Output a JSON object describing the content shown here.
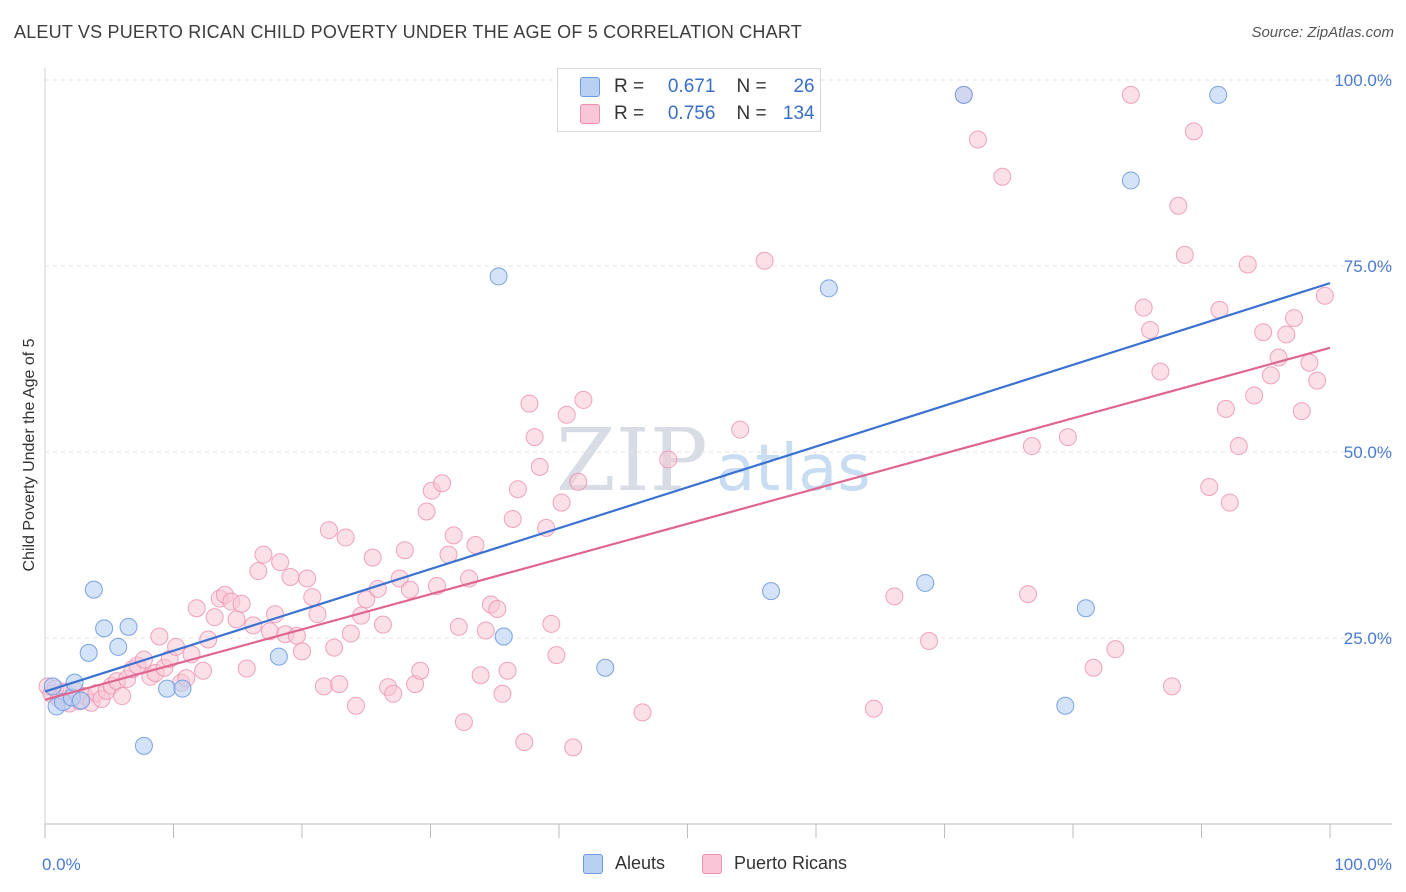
{
  "title": "ALEUT VS PUERTO RICAN CHILD POVERTY UNDER THE AGE OF 5 CORRELATION CHART",
  "source": "Source: ZipAtlas.com",
  "watermark": {
    "zip": "ZIP",
    "atlas": "atlas"
  },
  "legend": {
    "r_label": "R =",
    "n_label": "N =",
    "rows": [
      {
        "r": "0.671",
        "n": "26"
      },
      {
        "r": "0.756",
        "n": "134"
      }
    ]
  },
  "chart_data": {
    "type": "scatter",
    "title": "ALEUT VS PUERTO RICAN CHILD POVERTY UNDER THE AGE OF 5 CORRELATION CHART",
    "xlabel": "",
    "ylabel": "Child Poverty Under the Age of 5",
    "xlim": [
      0,
      100
    ],
    "ylim": [
      0,
      103
    ],
    "x_tick_labels": [
      "0.0%",
      "100.0%"
    ],
    "y_ticks": [
      25,
      50,
      75,
      100
    ],
    "y_tick_labels": [
      "25.0%",
      "50.0%",
      "75.0%",
      "100.0%"
    ],
    "grid": true,
    "legend_position": "top-center",
    "series": [
      {
        "name": "Aleuts",
        "color": "#6d9be0",
        "fill": "#b8d1f3",
        "trend": {
          "x": [
            0,
            100
          ],
          "y": [
            17.8,
            72.7
          ],
          "color": "#3a72d2"
        },
        "points": [
          [
            0.6,
            18.5
          ],
          [
            0.9,
            15.8
          ],
          [
            1.4,
            16.4
          ],
          [
            2.1,
            17.0
          ],
          [
            2.3,
            19.0
          ],
          [
            2.8,
            16.6
          ],
          [
            3.4,
            23.0
          ],
          [
            3.8,
            31.5
          ],
          [
            4.6,
            26.3
          ],
          [
            5.7,
            23.8
          ],
          [
            6.5,
            26.5
          ],
          [
            7.7,
            10.5
          ],
          [
            9.5,
            18.2
          ],
          [
            10.7,
            18.2
          ],
          [
            18.2,
            22.5
          ],
          [
            35.3,
            73.6
          ],
          [
            35.7,
            25.2
          ],
          [
            43.6,
            21.0
          ],
          [
            56.5,
            31.3
          ],
          [
            61.0,
            72.0
          ],
          [
            68.5,
            32.4
          ],
          [
            71.5,
            98.0
          ],
          [
            79.4,
            15.9
          ],
          [
            81.0,
            29.0
          ],
          [
            84.5,
            86.5
          ],
          [
            91.3,
            98.0
          ]
        ]
      },
      {
        "name": "Puerto Ricans",
        "color": "#ec8fae",
        "fill": "#f8c6d6",
        "trend": {
          "x": [
            0,
            100
          ],
          "y": [
            16.7,
            64.0
          ],
          "color": "#e0668f"
        },
        "points": [
          [
            0.2,
            18.5
          ],
          [
            0.5,
            17.5
          ],
          [
            0.8,
            18.2
          ],
          [
            1.1,
            16.8
          ],
          [
            1.5,
            17.8
          ],
          [
            1.9,
            16.2
          ],
          [
            2.3,
            18.0
          ],
          [
            2.7,
            16.5
          ],
          [
            3.1,
            17.2
          ],
          [
            3.6,
            16.3
          ],
          [
            4.0,
            17.6
          ],
          [
            4.4,
            16.8
          ],
          [
            4.8,
            17.9
          ],
          [
            5.2,
            18.6
          ],
          [
            5.6,
            19.2
          ],
          [
            6.0,
            17.2
          ],
          [
            6.4,
            19.5
          ],
          [
            6.8,
            20.8
          ],
          [
            7.2,
            21.3
          ],
          [
            7.7,
            22.1
          ],
          [
            8.2,
            19.8
          ],
          [
            8.6,
            20.3
          ],
          [
            8.9,
            25.2
          ],
          [
            9.3,
            21.0
          ],
          [
            9.7,
            22.2
          ],
          [
            10.2,
            23.8
          ],
          [
            10.6,
            19.0
          ],
          [
            11.0,
            19.6
          ],
          [
            11.4,
            22.8
          ],
          [
            11.8,
            29.0
          ],
          [
            12.3,
            20.6
          ],
          [
            12.7,
            24.8
          ],
          [
            13.2,
            27.8
          ],
          [
            13.6,
            30.3
          ],
          [
            14.0,
            30.8
          ],
          [
            14.5,
            29.9
          ],
          [
            14.9,
            27.5
          ],
          [
            15.3,
            29.6
          ],
          [
            15.7,
            20.9
          ],
          [
            16.2,
            26.7
          ],
          [
            16.6,
            34.0
          ],
          [
            17.0,
            36.2
          ],
          [
            17.5,
            25.9
          ],
          [
            17.9,
            28.2
          ],
          [
            18.3,
            35.2
          ],
          [
            18.7,
            25.5
          ],
          [
            19.1,
            33.2
          ],
          [
            19.6,
            25.3
          ],
          [
            20.0,
            23.2
          ],
          [
            20.4,
            33.0
          ],
          [
            20.8,
            30.5
          ],
          [
            21.2,
            28.2
          ],
          [
            21.7,
            18.5
          ],
          [
            22.1,
            39.5
          ],
          [
            22.5,
            23.7
          ],
          [
            22.9,
            18.8
          ],
          [
            23.4,
            38.5
          ],
          [
            23.8,
            25.6
          ],
          [
            24.2,
            15.9
          ],
          [
            24.6,
            28.0
          ],
          [
            25.0,
            30.2
          ],
          [
            25.5,
            35.8
          ],
          [
            25.9,
            31.6
          ],
          [
            26.3,
            26.8
          ],
          [
            26.7,
            18.4
          ],
          [
            27.1,
            17.5
          ],
          [
            27.6,
            33.0
          ],
          [
            28.0,
            36.8
          ],
          [
            28.4,
            31.5
          ],
          [
            28.8,
            18.8
          ],
          [
            29.2,
            20.6
          ],
          [
            29.7,
            42.0
          ],
          [
            30.1,
            44.8
          ],
          [
            30.5,
            32.0
          ],
          [
            30.9,
            45.8
          ],
          [
            31.4,
            36.2
          ],
          [
            31.8,
            38.8
          ],
          [
            32.2,
            26.5
          ],
          [
            32.6,
            13.7
          ],
          [
            33.0,
            33.0
          ],
          [
            33.5,
            37.5
          ],
          [
            33.9,
            20.0
          ],
          [
            34.3,
            26.0
          ],
          [
            34.7,
            29.5
          ],
          [
            35.2,
            28.9
          ],
          [
            35.6,
            17.5
          ],
          [
            36.0,
            20.6
          ],
          [
            36.4,
            41.0
          ],
          [
            36.8,
            45.0
          ],
          [
            37.3,
            11.0
          ],
          [
            37.7,
            56.5
          ],
          [
            38.1,
            52.0
          ],
          [
            38.5,
            48.0
          ],
          [
            39.0,
            39.8
          ],
          [
            39.4,
            26.9
          ],
          [
            39.8,
            22.7
          ],
          [
            40.2,
            43.2
          ],
          [
            40.6,
            55.0
          ],
          [
            41.1,
            10.3
          ],
          [
            41.5,
            46.0
          ],
          [
            41.9,
            57.0
          ],
          [
            46.5,
            15.0
          ],
          [
            48.5,
            49.0
          ],
          [
            54.1,
            53.0
          ],
          [
            56.0,
            75.7
          ],
          [
            64.5,
            15.5
          ],
          [
            66.1,
            30.6
          ],
          [
            68.8,
            24.6
          ],
          [
            71.5,
            98.0
          ],
          [
            72.6,
            92.0
          ],
          [
            74.5,
            87.0
          ],
          [
            76.5,
            30.9
          ],
          [
            76.8,
            50.8
          ],
          [
            79.6,
            52.0
          ],
          [
            81.6,
            21.0
          ],
          [
            83.3,
            23.5
          ],
          [
            84.5,
            98.0
          ],
          [
            85.5,
            69.4
          ],
          [
            86.0,
            66.4
          ],
          [
            86.8,
            60.8
          ],
          [
            87.7,
            18.5
          ],
          [
            88.2,
            83.1
          ],
          [
            88.7,
            76.5
          ],
          [
            89.4,
            93.1
          ],
          [
            90.6,
            45.3
          ],
          [
            91.4,
            69.1
          ],
          [
            91.9,
            55.8
          ],
          [
            92.2,
            43.2
          ],
          [
            92.9,
            50.8
          ],
          [
            93.6,
            75.2
          ],
          [
            94.1,
            57.6
          ],
          [
            94.8,
            66.1
          ],
          [
            95.4,
            60.3
          ],
          [
            96.0,
            62.7
          ],
          [
            96.6,
            65.8
          ],
          [
            97.2,
            68.0
          ],
          [
            97.8,
            55.5
          ],
          [
            98.4,
            62.0
          ],
          [
            99.0,
            59.6
          ],
          [
            99.6,
            71.0
          ]
        ]
      }
    ]
  },
  "bottom_legend": [
    {
      "label": "Aleuts"
    },
    {
      "label": "Puerto Ricans"
    }
  ]
}
